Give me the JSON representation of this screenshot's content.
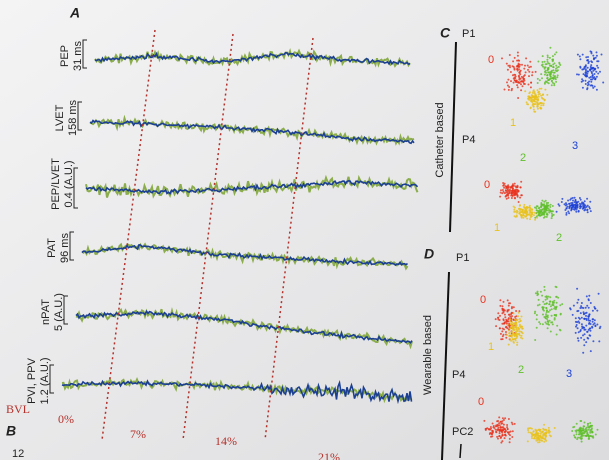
{
  "panel_a": {
    "label": "A",
    "traces": [
      {
        "name": "PEP",
        "scale": "31 ms"
      },
      {
        "name": "LVET",
        "scale": "158 ms"
      },
      {
        "name": "PEP/LVET",
        "scale": "0.4 (A.U.)"
      },
      {
        "name": "PAT",
        "scale": "96 ms"
      },
      {
        "name": "nPAT",
        "scale": "5 (A.U.)"
      },
      {
        "name": "PVI, PPV",
        "scale": "1.2 (A.U.)"
      }
    ],
    "bvl": {
      "label": "BVL",
      "levels": [
        "0%",
        "7%",
        "14%",
        "21%"
      ]
    }
  },
  "panel_b": {
    "label": "B",
    "text": "12"
  },
  "panel_c": {
    "label": "C",
    "group": "Catheter based",
    "plots": [
      {
        "title": "P1",
        "clusters": [
          "0",
          "1",
          "2",
          "3"
        ]
      },
      {
        "title": "P4",
        "clusters": [
          "0",
          "1",
          "2"
        ]
      }
    ]
  },
  "panel_d": {
    "label": "D",
    "group": "Wearable based",
    "plots": [
      {
        "title": "P1",
        "clusters": [
          "0",
          "1",
          "2",
          "3"
        ]
      },
      {
        "title": "P4",
        "clusters": [
          "0"
        ]
      }
    ],
    "axis": "PC2"
  }
}
